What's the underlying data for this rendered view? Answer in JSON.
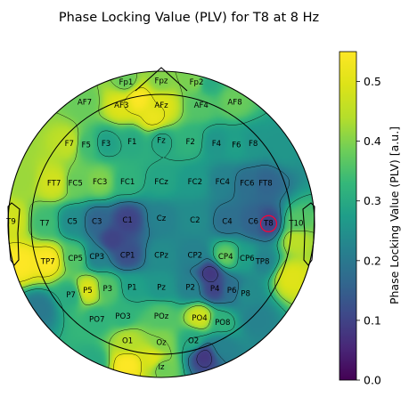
{
  "chart_data": {
    "type": "heatmap",
    "subtype": "eeg-topomap",
    "title": "Phase Locking Value (PLV) for T8 at 8 Hz",
    "colorbar": {
      "label": "Phase Locking Value (PLV) [a.u.]",
      "colormap": "viridis",
      "range": [
        0.0,
        0.55
      ],
      "ticks": [
        0.0,
        0.1,
        0.2,
        0.3,
        0.4,
        0.5
      ],
      "tick_labels": [
        "0.0",
        "0.1",
        "0.2",
        "0.3",
        "0.4",
        "0.5"
      ]
    },
    "seed_electrode": "T8",
    "electrodes": [
      {
        "label": "Fp1",
        "x": -0.23,
        "y": 0.93,
        "value": 0.38
      },
      {
        "label": "Fpz",
        "x": 0.0,
        "y": 0.94,
        "value": 0.4
      },
      {
        "label": "Fp2",
        "x": 0.23,
        "y": 0.93,
        "value": 0.4
      },
      {
        "label": "AF7",
        "x": -0.5,
        "y": 0.8,
        "value": 0.38
      },
      {
        "label": "AF3",
        "x": -0.26,
        "y": 0.78,
        "value": 0.5
      },
      {
        "label": "AFz",
        "x": 0.0,
        "y": 0.78,
        "value": 0.5
      },
      {
        "label": "AF4",
        "x": 0.26,
        "y": 0.78,
        "value": 0.36
      },
      {
        "label": "AF8",
        "x": 0.48,
        "y": 0.8,
        "value": 0.38
      },
      {
        "label": "F7",
        "x": -0.6,
        "y": 0.53,
        "value": 0.46
      },
      {
        "label": "F5",
        "x": -0.49,
        "y": 0.52,
        "value": 0.34
      },
      {
        "label": "F3",
        "x": -0.36,
        "y": 0.53,
        "value": 0.28
      },
      {
        "label": "F1",
        "x": -0.19,
        "y": 0.54,
        "value": 0.3
      },
      {
        "label": "Fz",
        "x": 0.0,
        "y": 0.55,
        "value": 0.29
      },
      {
        "label": "F2",
        "x": 0.19,
        "y": 0.54,
        "value": 0.32
      },
      {
        "label": "F4",
        "x": 0.36,
        "y": 0.53,
        "value": 0.26
      },
      {
        "label": "F6",
        "x": 0.49,
        "y": 0.52,
        "value": 0.28
      },
      {
        "label": "F8",
        "x": 0.6,
        "y": 0.53,
        "value": 0.26
      },
      {
        "label": "FT7",
        "x": -0.7,
        "y": 0.27,
        "value": 0.48
      },
      {
        "label": "FC5",
        "x": -0.56,
        "y": 0.27,
        "value": 0.38
      },
      {
        "label": "FC3",
        "x": -0.4,
        "y": 0.28,
        "value": 0.4
      },
      {
        "label": "FC1",
        "x": -0.22,
        "y": 0.28,
        "value": 0.32
      },
      {
        "label": "FCz",
        "x": 0.0,
        "y": 0.28,
        "value": 0.29
      },
      {
        "label": "FC2",
        "x": 0.22,
        "y": 0.28,
        "value": 0.27
      },
      {
        "label": "FC4",
        "x": 0.4,
        "y": 0.28,
        "value": 0.22
      },
      {
        "label": "FC6",
        "x": 0.56,
        "y": 0.27,
        "value": 0.18
      },
      {
        "label": "FT8",
        "x": 0.68,
        "y": 0.27,
        "value": 0.16
      },
      {
        "label": "T9",
        "x": -0.98,
        "y": 0.02,
        "value": 0.48
      },
      {
        "label": "T7",
        "x": -0.76,
        "y": 0.01,
        "value": 0.34
      },
      {
        "label": "C5",
        "x": -0.58,
        "y": 0.02,
        "value": 0.24
      },
      {
        "label": "C3",
        "x": -0.42,
        "y": 0.02,
        "value": 0.16
      },
      {
        "label": "C1",
        "x": -0.22,
        "y": 0.03,
        "value": 0.1
      },
      {
        "label": "Cz",
        "x": 0.0,
        "y": 0.04,
        "value": 0.22
      },
      {
        "label": "C2",
        "x": 0.22,
        "y": 0.03,
        "value": 0.24
      },
      {
        "label": "C4",
        "x": 0.43,
        "y": 0.02,
        "value": 0.18
      },
      {
        "label": "C6",
        "x": 0.6,
        "y": 0.02,
        "value": 0.16
      },
      {
        "label": "T8",
        "x": 0.7,
        "y": 0.01,
        "value": 0.1
      },
      {
        "label": "T10",
        "x": 0.88,
        "y": 0.01,
        "value": 0.36
      },
      {
        "label": "TP7",
        "x": -0.74,
        "y": -0.24,
        "value": 0.55
      },
      {
        "label": "CP5",
        "x": -0.56,
        "y": -0.22,
        "value": 0.36
      },
      {
        "label": "CP3",
        "x": -0.42,
        "y": -0.21,
        "value": 0.22
      },
      {
        "label": "CP1",
        "x": -0.22,
        "y": -0.2,
        "value": 0.12
      },
      {
        "label": "CPz",
        "x": 0.0,
        "y": -0.2,
        "value": 0.24
      },
      {
        "label": "CP2",
        "x": 0.22,
        "y": -0.2,
        "value": 0.22
      },
      {
        "label": "CP4",
        "x": 0.42,
        "y": -0.21,
        "value": 0.38
      },
      {
        "label": "CP6",
        "x": 0.56,
        "y": -0.22,
        "value": 0.28
      },
      {
        "label": "TP8",
        "x": 0.66,
        "y": -0.24,
        "value": 0.22
      },
      {
        "label": "P7",
        "x": -0.59,
        "y": -0.46,
        "value": 0.3
      },
      {
        "label": "P5",
        "x": -0.48,
        "y": -0.43,
        "value": 0.5
      },
      {
        "label": "P3",
        "x": -0.35,
        "y": -0.42,
        "value": 0.36
      },
      {
        "label": "P1",
        "x": -0.19,
        "y": -0.41,
        "value": 0.28
      },
      {
        "label": "Pz",
        "x": 0.0,
        "y": -0.41,
        "value": 0.26
      },
      {
        "label": "P2",
        "x": 0.19,
        "y": -0.41,
        "value": 0.22
      },
      {
        "label": "P4",
        "x": 0.35,
        "y": -0.42,
        "value": 0.1
      },
      {
        "label": "P6",
        "x": 0.46,
        "y": -0.43,
        "value": 0.18
      },
      {
        "label": "P8",
        "x": 0.55,
        "y": -0.45,
        "value": 0.24
      },
      {
        "label": "PO7",
        "x": -0.42,
        "y": -0.62,
        "value": 0.32
      },
      {
        "label": "PO3",
        "x": -0.25,
        "y": -0.6,
        "value": 0.32
      },
      {
        "label": "POz",
        "x": 0.0,
        "y": -0.6,
        "value": 0.36
      },
      {
        "label": "PO4",
        "x": 0.25,
        "y": -0.61,
        "value": 0.48
      },
      {
        "label": "PO8",
        "x": 0.4,
        "y": -0.64,
        "value": 0.32
      },
      {
        "label": "O1",
        "x": -0.22,
        "y": -0.76,
        "value": 0.44
      },
      {
        "label": "Oz",
        "x": 0.0,
        "y": -0.77,
        "value": 0.4
      },
      {
        "label": "O2",
        "x": 0.21,
        "y": -0.76,
        "value": 0.3
      },
      {
        "label": "Iz",
        "x": 0.0,
        "y": -0.93,
        "value": 0.38
      }
    ],
    "extra_field_points": [
      {
        "x": -0.15,
        "y": 0.82,
        "value": 0.55
      },
      {
        "x": -0.05,
        "y": 0.7,
        "value": 0.52
      },
      {
        "x": -0.45,
        "y": -0.9,
        "value": 0.3
      },
      {
        "x": -0.22,
        "y": -0.92,
        "value": 0.55
      },
      {
        "x": -0.05,
        "y": -0.88,
        "value": 0.5
      },
      {
        "x": 0.28,
        "y": -0.86,
        "value": 0.08
      },
      {
        "x": 0.4,
        "y": -0.8,
        "value": 0.22
      },
      {
        "x": 0.85,
        "y": -0.35,
        "value": 0.5
      },
      {
        "x": 0.88,
        "y": -0.1,
        "value": 0.45
      },
      {
        "x": -0.8,
        "y": -0.55,
        "value": 0.2
      },
      {
        "x": -0.92,
        "y": -0.25,
        "value": 0.55
      },
      {
        "x": -0.92,
        "y": 0.3,
        "value": 0.42
      },
      {
        "x": 0.8,
        "y": 0.5,
        "value": 0.26
      },
      {
        "x": 0.3,
        "y": 0.92,
        "value": 0.3
      },
      {
        "x": -0.32,
        "y": -0.1,
        "value": 0.1
      },
      {
        "x": 0.32,
        "y": -0.32,
        "value": 0.08
      },
      {
        "x": 0.62,
        "y": -0.62,
        "value": 0.22
      }
    ]
  }
}
